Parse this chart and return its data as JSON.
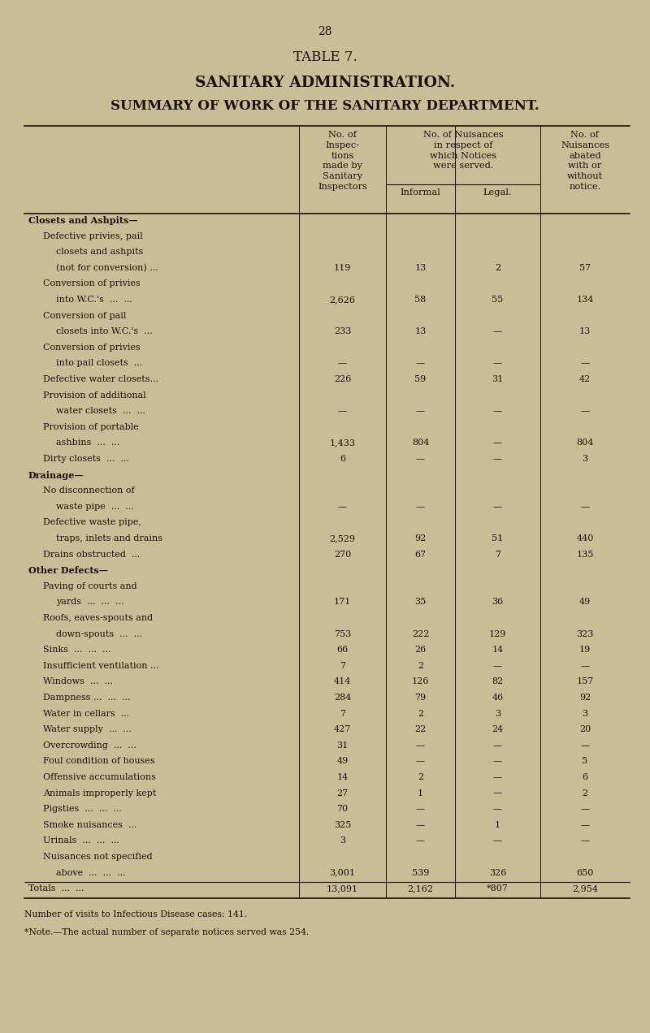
{
  "page_number": "28",
  "title1": "TABLE 7.",
  "title2": "SANITARY ADMINISTRATION.",
  "title3": "SUMMARY OF WORK OF THE SANITARY DEPARTMENT.",
  "rows": [
    {
      "label": "Closets and Ashpits—",
      "bold": true,
      "indent": 0,
      "values": [
        "",
        "",
        "",
        ""
      ]
    },
    {
      "label": "Defective privies, pail",
      "bold": false,
      "indent": 1,
      "values": [
        "",
        "",
        "",
        ""
      ]
    },
    {
      "label": "closets and ashpits",
      "bold": false,
      "indent": 2,
      "values": [
        "",
        "",
        "",
        ""
      ]
    },
    {
      "label": "(not for conversion) ...",
      "bold": false,
      "indent": 2,
      "values": [
        "119",
        "13",
        "2",
        "57"
      ]
    },
    {
      "label": "Conversion of privies",
      "bold": false,
      "indent": 1,
      "values": [
        "",
        "",
        "",
        ""
      ]
    },
    {
      "label": "into W.C.'s  ...  ...",
      "bold": false,
      "indent": 2,
      "values": [
        "2,626",
        "58",
        "55",
        "134"
      ]
    },
    {
      "label": "Conversion of pail",
      "bold": false,
      "indent": 1,
      "values": [
        "",
        "",
        "",
        ""
      ]
    },
    {
      "label": "closets into W.C.'s  ...",
      "bold": false,
      "indent": 2,
      "values": [
        "233",
        "13",
        "—",
        "13"
      ]
    },
    {
      "label": "Conversion of privies",
      "bold": false,
      "indent": 1,
      "values": [
        "",
        "",
        "",
        ""
      ]
    },
    {
      "label": "into pail closets  ...",
      "bold": false,
      "indent": 2,
      "values": [
        "—",
        "—",
        "—",
        "—"
      ]
    },
    {
      "label": "Defective water closets...",
      "bold": false,
      "indent": 1,
      "values": [
        "226",
        "59",
        "31",
        "42"
      ]
    },
    {
      "label": "Provision of additional",
      "bold": false,
      "indent": 1,
      "values": [
        "",
        "",
        "",
        ""
      ]
    },
    {
      "label": "water closets  ...  ...",
      "bold": false,
      "indent": 2,
      "values": [
        "—",
        "—",
        "—",
        "—"
      ]
    },
    {
      "label": "Provision of portable",
      "bold": false,
      "indent": 1,
      "values": [
        "",
        "",
        "",
        ""
      ]
    },
    {
      "label": "ashbins  ...  ...",
      "bold": false,
      "indent": 2,
      "values": [
        "1,433",
        "804",
        "—",
        "804"
      ]
    },
    {
      "label": "Dirty closets  ...  ...",
      "bold": false,
      "indent": 1,
      "values": [
        "6",
        "—",
        "—",
        "3"
      ]
    },
    {
      "label": "Drainage—",
      "bold": true,
      "indent": 0,
      "values": [
        "",
        "",
        "",
        ""
      ]
    },
    {
      "label": "No disconnection of",
      "bold": false,
      "indent": 1,
      "values": [
        "",
        "",
        "",
        ""
      ]
    },
    {
      "label": "waste pipe  ...  ...",
      "bold": false,
      "indent": 2,
      "values": [
        "—",
        "—",
        "—",
        "—"
      ]
    },
    {
      "label": "Defective waste pipe,",
      "bold": false,
      "indent": 1,
      "values": [
        "",
        "",
        "",
        ""
      ]
    },
    {
      "label": "traps, inlets and drains",
      "bold": false,
      "indent": 2,
      "values": [
        "2,529",
        "92",
        "51",
        "440"
      ]
    },
    {
      "label": "Drains obstructed  ...",
      "bold": false,
      "indent": 1,
      "values": [
        "270",
        "67",
        "7",
        "135"
      ]
    },
    {
      "label": "Other Defects—",
      "bold": true,
      "indent": 0,
      "values": [
        "",
        "",
        "",
        ""
      ]
    },
    {
      "label": "Paving of courts and",
      "bold": false,
      "indent": 1,
      "values": [
        "",
        "",
        "",
        ""
      ]
    },
    {
      "label": "yards  ...  ...  ...",
      "bold": false,
      "indent": 2,
      "values": [
        "171",
        "35",
        "36",
        "49"
      ]
    },
    {
      "label": "Roofs, eaves-spouts and",
      "bold": false,
      "indent": 1,
      "values": [
        "",
        "",
        "",
        ""
      ]
    },
    {
      "label": "down-spouts  ...  ...",
      "bold": false,
      "indent": 2,
      "values": [
        "753",
        "222",
        "129",
        "323"
      ]
    },
    {
      "label": "Sinks  ...  ...  ...",
      "bold": false,
      "indent": 1,
      "values": [
        "66",
        "26",
        "14",
        "19"
      ]
    },
    {
      "label": "Insufficient ventilation ...",
      "bold": false,
      "indent": 1,
      "values": [
        "7",
        "2",
        "—",
        "—"
      ]
    },
    {
      "label": "Windows  ...  ...",
      "bold": false,
      "indent": 1,
      "values": [
        "414",
        "126",
        "82",
        "157"
      ]
    },
    {
      "label": "Dampness ...  ...  ...",
      "bold": false,
      "indent": 1,
      "values": [
        "284",
        "79",
        "46",
        "92"
      ]
    },
    {
      "label": "Water in cellars  ...",
      "bold": false,
      "indent": 1,
      "values": [
        "7",
        "2",
        "3",
        "3"
      ]
    },
    {
      "label": "Water supply  ...  ...",
      "bold": false,
      "indent": 1,
      "values": [
        "427",
        "22",
        "24",
        "20"
      ]
    },
    {
      "label": "Overcrowding  ...  ...",
      "bold": false,
      "indent": 1,
      "values": [
        "31",
        "—",
        "—",
        "—"
      ]
    },
    {
      "label": "Foul condition of houses",
      "bold": false,
      "indent": 1,
      "values": [
        "49",
        "—",
        "—",
        "5"
      ]
    },
    {
      "label": "Offensive accumulations",
      "bold": false,
      "indent": 1,
      "values": [
        "14",
        "2",
        "—",
        "6"
      ]
    },
    {
      "label": "Animals improperly kept",
      "bold": false,
      "indent": 1,
      "values": [
        "27",
        "1",
        "—",
        "2"
      ]
    },
    {
      "label": "Pigsties  ...  ...  ...",
      "bold": false,
      "indent": 1,
      "values": [
        "70",
        "—",
        "—",
        "—"
      ]
    },
    {
      "label": "Smoke nuisances  ...",
      "bold": false,
      "indent": 1,
      "values": [
        "325",
        "—",
        "1",
        "—"
      ]
    },
    {
      "label": "Urinals  ...  ...  ...",
      "bold": false,
      "indent": 1,
      "values": [
        "3",
        "—",
        "—",
        "—"
      ]
    },
    {
      "label": "Nuisances not specified",
      "bold": false,
      "indent": 1,
      "values": [
        "",
        "",
        "",
        ""
      ]
    },
    {
      "label": "above  ...  ...  ...",
      "bold": false,
      "indent": 2,
      "values": [
        "3,001",
        "539",
        "326",
        "650"
      ]
    },
    {
      "label": "Totals  ...  ...",
      "bold": false,
      "indent": 0,
      "values": [
        "13,091",
        "2,162",
        "*807",
        "2,954"
      ],
      "totals_row": true
    }
  ],
  "footer1": "Number of visits to Infectious Disease cases: 141.",
  "footer2": "*Note.—The actual number of separate notices served was 254.",
  "bg_color": "#c9bd97",
  "text_color": "#1a1008",
  "line_color": "#1a1008"
}
